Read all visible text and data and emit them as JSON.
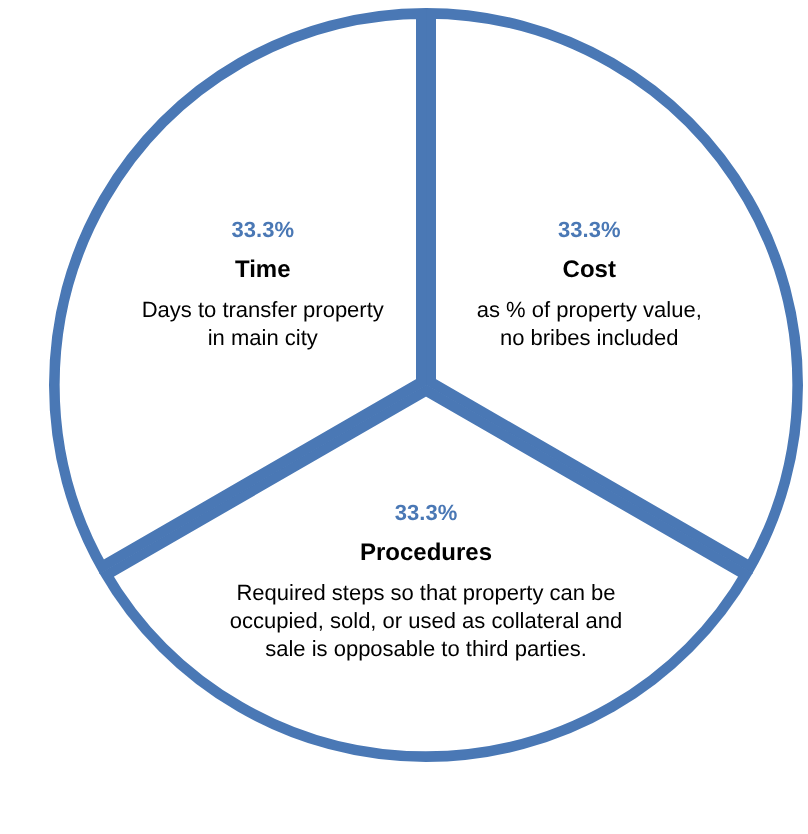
{
  "chart_data": {
    "type": "pie",
    "categories": [
      "Cost",
      "Procedures",
      "Time"
    ],
    "values": [
      33.3,
      33.3,
      33.3
    ],
    "colors": [
      "#ffffff",
      "#ffffff",
      "#ffffff"
    ],
    "value_labels": [
      "33.3%",
      "33.3%",
      "33.3%"
    ],
    "annotations": [
      "as % of property value, no bribes included",
      "Required steps so that property can be occupied, sold, or used as collateral and sale is opposable to third parties.",
      "Days to transfer property in main city"
    ],
    "legend": false
  }
}
